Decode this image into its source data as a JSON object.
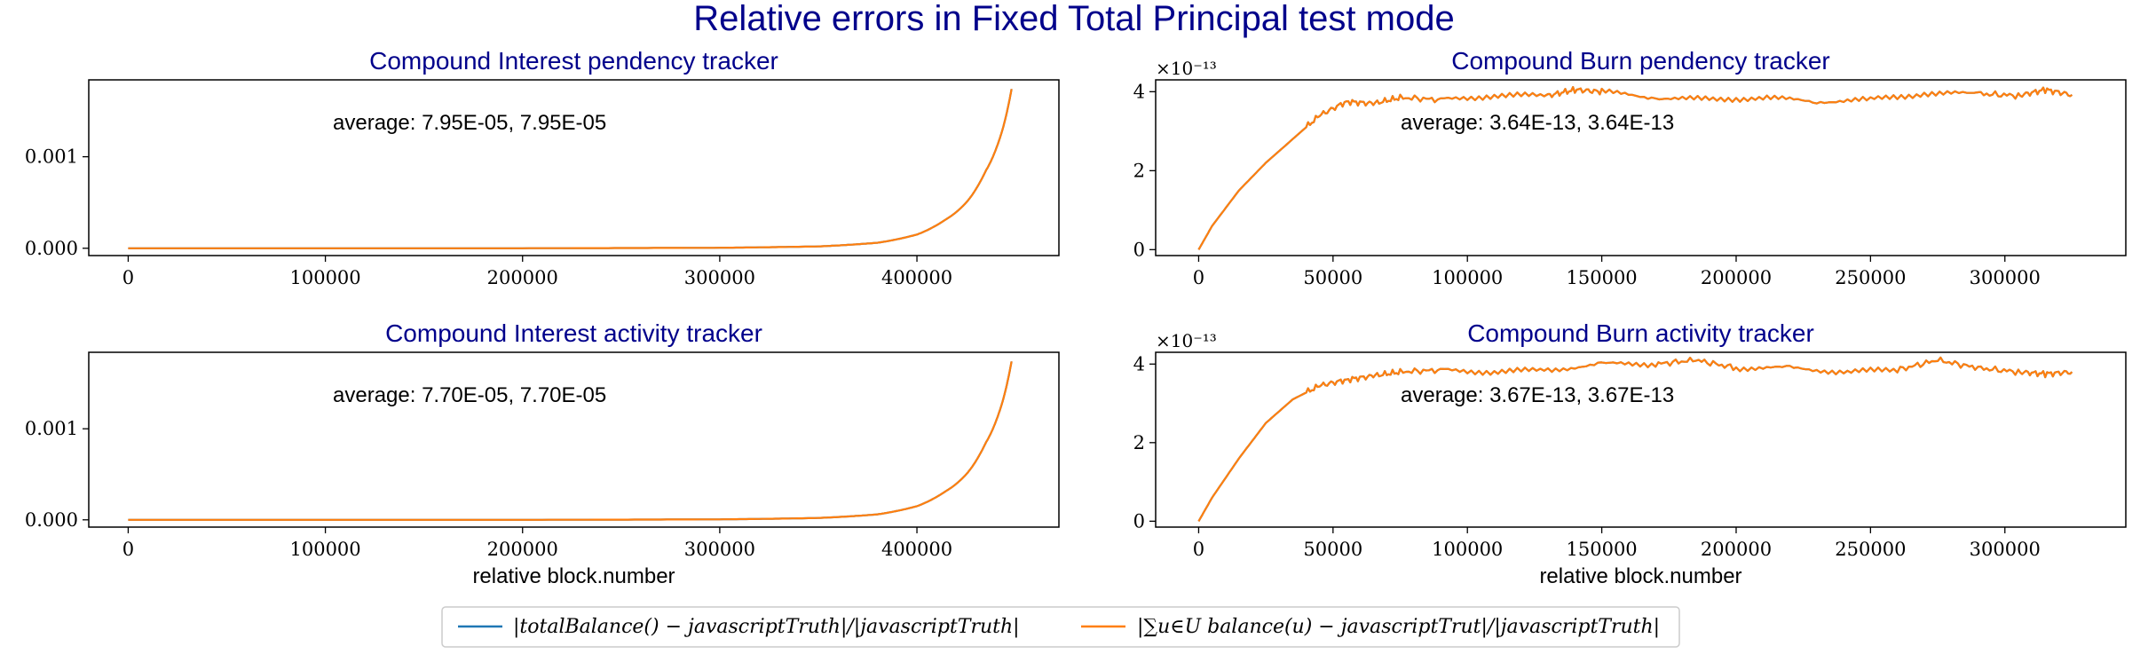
{
  "figure": {
    "title": "Relative errors in Fixed Total Principal test mode"
  },
  "legend": {
    "placement": "bottom-center",
    "entries": [
      {
        "label": "|totalBalance() − javascriptTruth|/|javascriptTruth|",
        "color": "#1f77b4"
      },
      {
        "label": "|∑u∈U balance(u) − javascriptTrut|/|javascriptTruth|",
        "color": "#ff7f0e"
      }
    ]
  },
  "colors": {
    "title": "#00008b",
    "series1": "#1f77b4",
    "series2": "#ff7f0e"
  },
  "chart_data": [
    {
      "type": "line",
      "title": "Compound Interest pendency tracker",
      "xlabel": "",
      "ylabel": "",
      "annotation": "average: 7.95E-05, 7.95E-05",
      "xlim": [
        -20000,
        472000
      ],
      "ylim": [
        -8e-05,
        0.00184
      ],
      "xticks": [
        0,
        100000,
        200000,
        300000,
        400000
      ],
      "xtick_labels": [
        "0",
        "100000",
        "200000",
        "300000",
        "400000"
      ],
      "yticks": [
        0,
        0.001
      ],
      "ytick_labels": [
        "0.000",
        "0.001"
      ],
      "exponent_label": "",
      "series": [
        {
          "color": "#1f77b4",
          "x": [
            0,
            100000,
            200000,
            300000,
            350000,
            380000,
            400000,
            415000,
            425000,
            435000,
            442000,
            448000
          ],
          "y": [
            0,
            0,
            0,
            5e-06,
            2e-05,
            6e-05,
            0.00015,
            0.00032,
            0.0005,
            0.00085,
            0.0012,
            0.00174
          ]
        },
        {
          "color": "#ff7f0e",
          "x": [
            0,
            100000,
            200000,
            300000,
            350000,
            380000,
            400000,
            415000,
            425000,
            435000,
            442000,
            448000
          ],
          "y": [
            0,
            0,
            0,
            5e-06,
            2e-05,
            6e-05,
            0.00015,
            0.00032,
            0.0005,
            0.00085,
            0.0012,
            0.00174
          ]
        }
      ]
    },
    {
      "type": "line",
      "title": "Compound Burn pendency tracker",
      "xlabel": "",
      "ylabel": "",
      "annotation": "average: 3.64E-13, 3.64E-13",
      "xlim": [
        -16000,
        345000
      ],
      "ylim": [
        -1.5e-14,
        4.3e-13
      ],
      "xticks": [
        0,
        50000,
        100000,
        150000,
        200000,
        250000,
        300000
      ],
      "xtick_labels": [
        "0",
        "50000",
        "100000",
        "150000",
        "200000",
        "250000",
        "300000"
      ],
      "yticks": [
        0,
        2e-13,
        4e-13
      ],
      "ytick_labels": [
        "0",
        "2",
        "4"
      ],
      "exponent_label": "×10⁻¹³",
      "series": [
        {
          "color": "#1f77b4",
          "x": [
            0,
            5000,
            15000,
            25000,
            35000,
            45000,
            55000,
            65000,
            75000,
            90000,
            110000,
            130000,
            140000,
            150000,
            170000,
            190000,
            210000,
            230000,
            250000,
            270000,
            290000,
            305000,
            315000,
            325000
          ],
          "y": [
            0,
            6e-14,
            1.5e-13,
            2.2e-13,
            2.8e-13,
            3.4e-13,
            3.75e-13,
            3.7e-13,
            3.85e-13,
            3.8e-13,
            3.9e-13,
            3.9e-13,
            4.05e-13,
            4e-13,
            3.85e-13,
            3.8e-13,
            3.85e-13,
            3.75e-13,
            3.8e-13,
            3.95e-13,
            3.95e-13,
            3.9e-13,
            4.05e-13,
            3.92e-13
          ]
        },
        {
          "color": "#ff7f0e",
          "x": [
            0,
            5000,
            15000,
            25000,
            35000,
            45000,
            55000,
            65000,
            75000,
            90000,
            110000,
            130000,
            140000,
            150000,
            170000,
            190000,
            210000,
            230000,
            250000,
            270000,
            290000,
            305000,
            315000,
            325000
          ],
          "y": [
            0,
            6e-14,
            1.5e-13,
            2.2e-13,
            2.8e-13,
            3.4e-13,
            3.75e-13,
            3.7e-13,
            3.85e-13,
            3.8e-13,
            3.9e-13,
            3.9e-13,
            4.05e-13,
            4e-13,
            3.85e-13,
            3.8e-13,
            3.85e-13,
            3.75e-13,
            3.8e-13,
            3.95e-13,
            3.95e-13,
            3.9e-13,
            4.05e-13,
            3.92e-13
          ]
        }
      ]
    },
    {
      "type": "line",
      "title": "Compound Interest activity tracker",
      "xlabel": "relative block.number",
      "ylabel": "",
      "annotation": "average: 7.70E-05, 7.70E-05",
      "xlim": [
        -20000,
        472000
      ],
      "ylim": [
        -8e-05,
        0.00184
      ],
      "xticks": [
        0,
        100000,
        200000,
        300000,
        400000
      ],
      "xtick_labels": [
        "0",
        "100000",
        "200000",
        "300000",
        "400000"
      ],
      "yticks": [
        0,
        0.001
      ],
      "ytick_labels": [
        "0.000",
        "0.001"
      ],
      "exponent_label": "",
      "series": [
        {
          "color": "#1f77b4",
          "x": [
            0,
            100000,
            200000,
            300000,
            350000,
            380000,
            400000,
            415000,
            425000,
            435000,
            442000,
            448000
          ],
          "y": [
            0,
            0,
            0,
            5e-06,
            2e-05,
            6e-05,
            0.00015,
            0.00032,
            0.0005,
            0.00085,
            0.0012,
            0.00174
          ]
        },
        {
          "color": "#ff7f0e",
          "x": [
            0,
            100000,
            200000,
            300000,
            350000,
            380000,
            400000,
            415000,
            425000,
            435000,
            442000,
            448000
          ],
          "y": [
            0,
            0,
            0,
            5e-06,
            2e-05,
            6e-05,
            0.00015,
            0.00032,
            0.0005,
            0.00085,
            0.0012,
            0.00174
          ]
        }
      ]
    },
    {
      "type": "line",
      "title": "Compound Burn activity tracker",
      "xlabel": "relative block.number",
      "ylabel": "",
      "annotation": "average: 3.67E-13, 3.67E-13",
      "xlim": [
        -16000,
        345000
      ],
      "ylim": [
        -1.5e-14,
        4.3e-13
      ],
      "xticks": [
        0,
        50000,
        100000,
        150000,
        200000,
        250000,
        300000
      ],
      "xtick_labels": [
        "0",
        "50000",
        "100000",
        "150000",
        "200000",
        "250000",
        "300000"
      ],
      "yticks": [
        0,
        2e-13,
        4e-13
      ],
      "ytick_labels": [
        "0",
        "2",
        "4"
      ],
      "exponent_label": "×10⁻¹³",
      "series": [
        {
          "color": "#1f77b4",
          "x": [
            0,
            5000,
            15000,
            25000,
            35000,
            45000,
            55000,
            65000,
            75000,
            90000,
            110000,
            130000,
            150000,
            170000,
            185000,
            200000,
            220000,
            240000,
            260000,
            275000,
            290000,
            305000,
            315000,
            325000
          ],
          "y": [
            0,
            6e-14,
            1.6e-13,
            2.5e-13,
            3.1e-13,
            3.45e-13,
            3.6e-13,
            3.7e-13,
            3.8e-13,
            3.85e-13,
            3.8e-13,
            3.85e-13,
            4e-13,
            4e-13,
            4.1e-13,
            3.9e-13,
            3.9e-13,
            3.8e-13,
            3.85e-13,
            4.1e-13,
            3.9e-13,
            3.8e-13,
            3.75e-13,
            3.8e-13
          ]
        },
        {
          "color": "#ff7f0e",
          "x": [
            0,
            5000,
            15000,
            25000,
            35000,
            45000,
            55000,
            65000,
            75000,
            90000,
            110000,
            130000,
            150000,
            170000,
            185000,
            200000,
            220000,
            240000,
            260000,
            275000,
            290000,
            305000,
            315000,
            325000
          ],
          "y": [
            0,
            6e-14,
            1.6e-13,
            2.5e-13,
            3.1e-13,
            3.45e-13,
            3.6e-13,
            3.7e-13,
            3.8e-13,
            3.85e-13,
            3.8e-13,
            3.85e-13,
            4e-13,
            4e-13,
            4.1e-13,
            3.9e-13,
            3.9e-13,
            3.8e-13,
            3.85e-13,
            4.1e-13,
            3.9e-13,
            3.8e-13,
            3.75e-13,
            3.8e-13
          ]
        }
      ]
    }
  ]
}
